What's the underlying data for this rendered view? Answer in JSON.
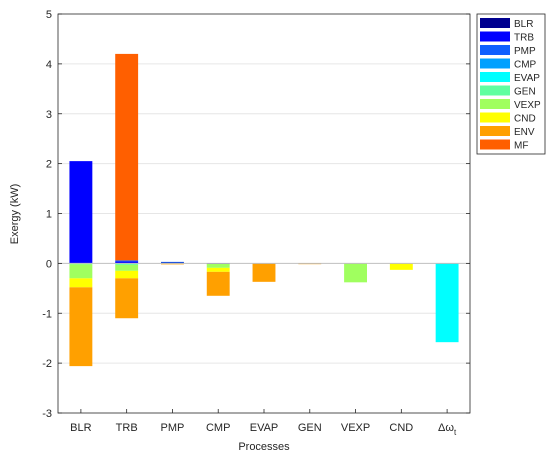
{
  "chart_data": {
    "type": "bar",
    "stacked": true,
    "xlabel": "Processes",
    "ylabel": "Exergy (kW)",
    "ylim": [
      -3,
      5
    ],
    "yticks": [
      "-3",
      "-2",
      "-1",
      "0",
      "1",
      "2",
      "3",
      "4",
      "5"
    ],
    "categories": [
      "BLR",
      "TRB",
      "PMP",
      "CMP",
      "EVAP",
      "GEN",
      "VEXP",
      "CND",
      "Δω_t"
    ],
    "grid": "y-major",
    "legend_position": "outside-right-top",
    "series": [
      {
        "name": "BLR",
        "color": "#00008f",
        "values": [
          0,
          0,
          0.02,
          -0.01,
          0,
          0,
          0,
          0,
          0
        ]
      },
      {
        "name": "TRB",
        "color": "#0000ff",
        "values": [
          2.05,
          0.04,
          0,
          0,
          0,
          0,
          0,
          0,
          0
        ]
      },
      {
        "name": "PMP",
        "color": "#0f5fff",
        "values": [
          0,
          0.02,
          0.01,
          0,
          0,
          0,
          0,
          0,
          0
        ]
      },
      {
        "name": "CMP",
        "color": "#00a0ff",
        "values": [
          0,
          0,
          0,
          0,
          0,
          0,
          0,
          0,
          0
        ]
      },
      {
        "name": "EVAP",
        "color": "#00ffff",
        "values": [
          0,
          0,
          0,
          0,
          0,
          0,
          0,
          0,
          -1.58
        ]
      },
      {
        "name": "GEN",
        "color": "#5fffa0",
        "values": [
          -0.02,
          -0.03,
          0,
          0,
          0,
          0,
          0,
          0,
          0
        ]
      },
      {
        "name": "VEXP",
        "color": "#a0ff5f",
        "values": [
          -0.28,
          -0.12,
          0,
          -0.08,
          0,
          0,
          -0.38,
          0,
          0
        ]
      },
      {
        "name": "CND",
        "color": "#ffff00",
        "values": [
          -0.18,
          -0.15,
          0,
          -0.08,
          0,
          0,
          0,
          -0.13,
          0
        ]
      },
      {
        "name": "ENV",
        "color": "#ffa000",
        "values": [
          -1.58,
          -0.8,
          -0.02,
          -0.48,
          -0.37,
          -0.01,
          0,
          0,
          0
        ]
      },
      {
        "name": "MF",
        "color": "#ff5f00",
        "values": [
          0,
          4.14,
          0,
          0,
          0,
          0,
          0,
          0,
          0
        ]
      }
    ]
  }
}
